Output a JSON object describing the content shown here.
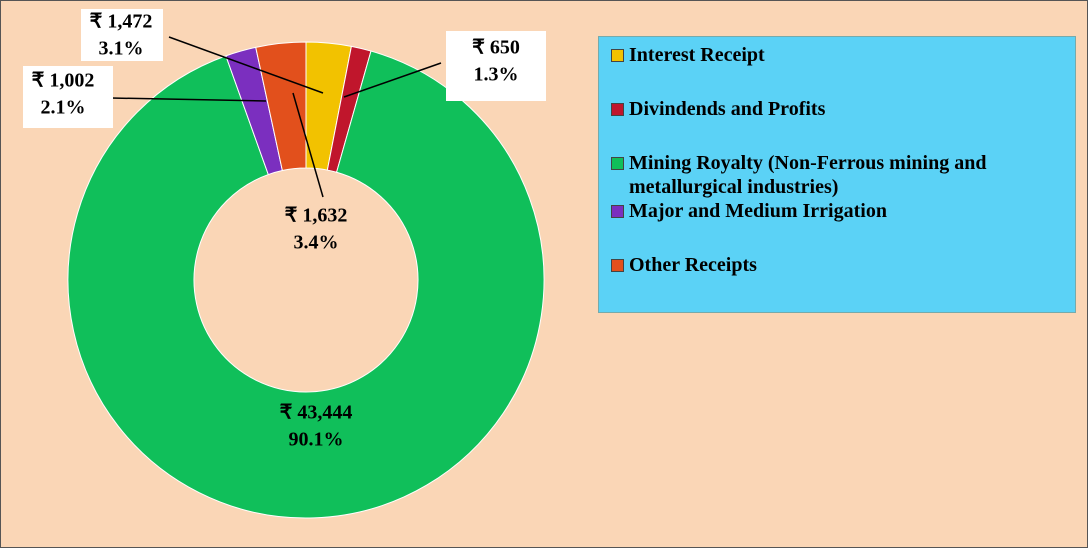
{
  "chart_data": {
    "type": "donut",
    "categories": [
      "Interest Receipt",
      "Divindends and Profits",
      "Mining Royalty (Non-Ferrous mining and metallurgical industries)",
      "Major and Medium Irrigation",
      "Other Receipts"
    ],
    "values": [
      1472,
      650,
      43444,
      1002,
      1632
    ],
    "value_labels": [
      "₹ 1,472",
      "₹ 650",
      "₹ 43,444",
      "₹ 1,002",
      "₹ 1,632"
    ],
    "percents": [
      3.1,
      1.3,
      90.1,
      2.1,
      3.4
    ],
    "percent_labels": [
      "3.1%",
      "1.3%",
      "90.1%",
      "2.1%",
      "3.4%"
    ],
    "colors": [
      "#f2c200",
      "#c0162c",
      "#10bf5a",
      "#7b2fbf",
      "#e2501c"
    ],
    "legend": "right"
  }
}
